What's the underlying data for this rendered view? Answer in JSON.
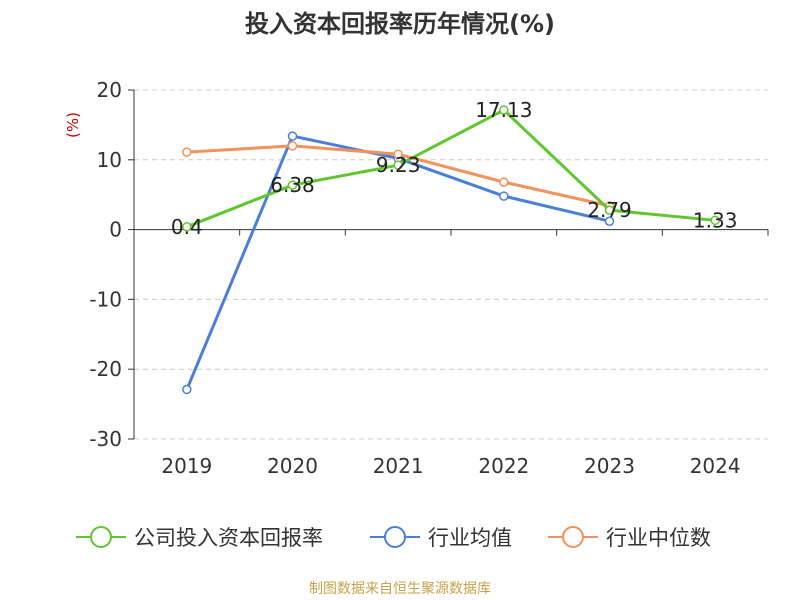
{
  "chart_data": {
    "type": "line",
    "title": "投入资本回报率历年情况(%)",
    "ylabel": "(%)",
    "xlabel": "",
    "categories": [
      "2019",
      "2020",
      "2021",
      "2022",
      "2023",
      "2024"
    ],
    "ylim": [
      -30,
      20
    ],
    "yticks": [
      20,
      10,
      0,
      -10,
      -20,
      -30
    ],
    "grid": true,
    "legend_position": "bottom",
    "series": [
      {
        "name": "公司投入资本回报率",
        "color": "#5fc62e",
        "values": [
          0.4,
          6.38,
          9.23,
          17.13,
          2.79,
          1.33
        ],
        "labels": [
          "0.4",
          "6.38",
          "9.23",
          "17.13",
          "2.79",
          "1.33"
        ]
      },
      {
        "name": "行业均值",
        "color": "#4a7fd9",
        "values": [
          -22.9,
          13.4,
          10.2,
          4.8,
          1.2,
          null
        ]
      },
      {
        "name": "行业中位数",
        "color": "#f5915a",
        "values": [
          11.1,
          12.0,
          10.8,
          6.8,
          3.4,
          null
        ]
      }
    ]
  },
  "source_note": "制图数据来自恒生聚源数据库",
  "colors": {
    "axis": "#333333",
    "grid": "#cccccc",
    "ylabel": "#cc0000",
    "source": "#c8a24a"
  }
}
